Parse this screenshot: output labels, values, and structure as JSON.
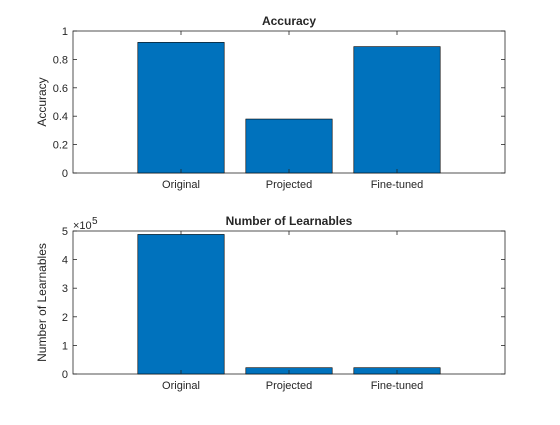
{
  "chart_data": [
    {
      "type": "bar",
      "title": "Accuracy",
      "xlabel": "",
      "ylabel": "Accuracy",
      "categories": [
        "Original",
        "Projected",
        "Fine-tuned"
      ],
      "values": [
        0.92,
        0.38,
        0.89
      ],
      "ylim": [
        0,
        1
      ],
      "yticks": [
        0,
        0.2,
        0.4,
        0.6,
        0.8,
        1
      ],
      "ytick_labels": [
        "0",
        "0.2",
        "0.4",
        "0.6",
        "0.8",
        "1"
      ],
      "grid": false,
      "bar_color": "#0072BD"
    },
    {
      "type": "bar",
      "title": "Number of Learnables",
      "xlabel": "",
      "ylabel": "Number of Learnables",
      "categories": [
        "Original",
        "Projected",
        "Fine-tuned"
      ],
      "values": [
        488000,
        22000,
        22000
      ],
      "ylim": [
        0,
        500000
      ],
      "yticks": [
        0,
        100000,
        200000,
        300000,
        400000,
        500000
      ],
      "ytick_labels": [
        "0",
        "1",
        "2",
        "3",
        "4",
        "5"
      ],
      "y_multiplier_base": "×10",
      "y_multiplier_exp": "5",
      "grid": false,
      "bar_color": "#0072BD"
    }
  ]
}
